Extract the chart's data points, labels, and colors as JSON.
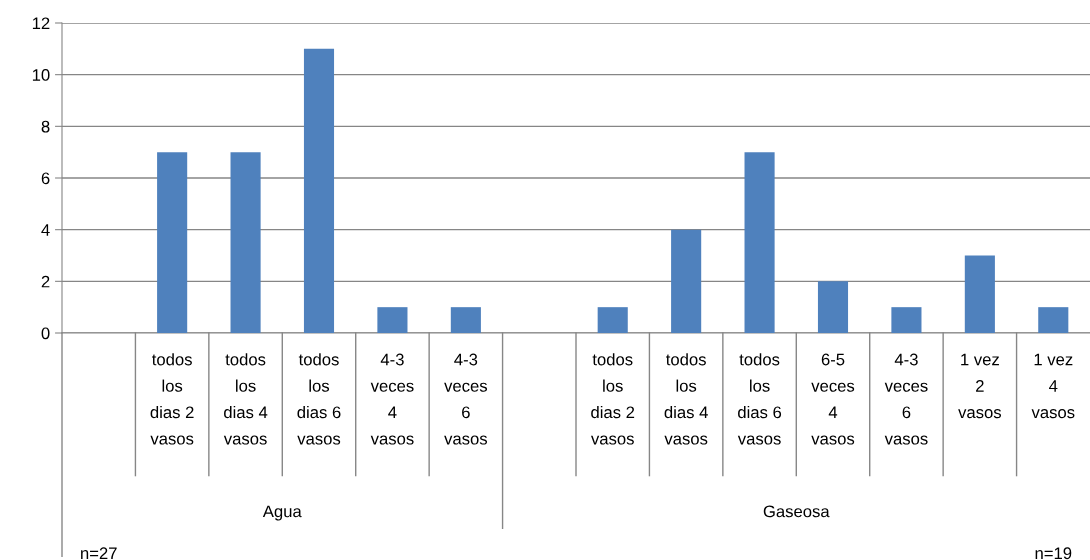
{
  "chart_data": {
    "type": "bar",
    "categories": [
      null,
      "todos\nlos\ndias 2\nvasos",
      "todos\nlos\ndias 4\nvasos",
      "todos\nlos\ndias 6\nvasos",
      "4-3\nveces\n4\nvasos",
      "4-3\nveces\n6\nvasos",
      null,
      "todos\nlos\ndias 2\nvasos",
      "todos\nlos\ndias 4\nvasos",
      "todos\nlos\ndias 6\nvasos",
      "6-5\nveces\n4\nvasos",
      "4-3\nveces\n6\nvasos",
      "1 vez\n2\nvasos",
      "1 vez\n4\nvasos"
    ],
    "values": [
      null,
      7,
      7,
      11,
      1,
      1,
      null,
      1,
      4,
      7,
      2,
      1,
      3,
      1
    ],
    "color": "#4f81bd",
    "ylim": [
      0,
      12
    ],
    "yticks": [
      0,
      2,
      4,
      6,
      8,
      10,
      12
    ],
    "grid": "y",
    "annotations": [
      "Agua",
      "Gaseosa",
      "n=27",
      "n=19"
    ]
  }
}
